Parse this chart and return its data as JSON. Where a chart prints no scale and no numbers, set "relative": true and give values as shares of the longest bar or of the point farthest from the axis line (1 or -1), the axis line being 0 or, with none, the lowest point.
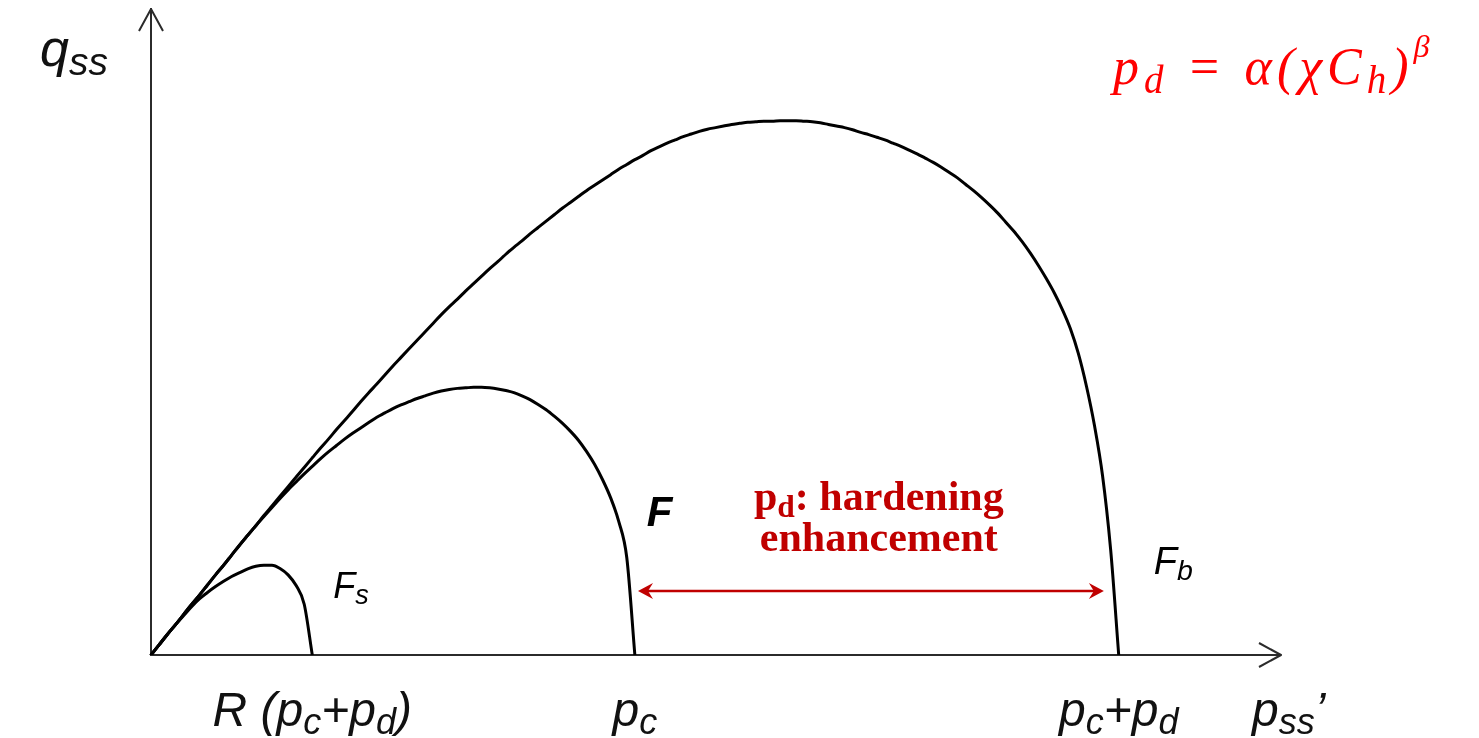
{
  "chart_data": {
    "type": "line",
    "relative": true,
    "xlabel": "p$_{ss}$’",
    "ylabel": "q$_{ss}$",
    "categories": [
      null,
      null,
      null,
      null,
      null,
      null,
      null,
      null,
      null,
      null,
      null,
      null,
      null,
      null,
      null,
      null,
      null,
      null,
      null,
      null,
      "R (p$_{c}$+p$_{d}$)",
      null,
      null,
      null,
      null,
      null,
      null,
      null,
      null,
      null,
      null,
      null,
      null,
      null,
      null,
      null,
      null,
      null,
      null,
      null,
      null,
      null,
      null,
      null,
      null,
      null,
      null,
      null,
      null,
      null,
      null,
      null,
      null,
      null,
      null,
      null,
      null,
      null,
      null,
      null,
      "p$_{c}$",
      null,
      null,
      null,
      null,
      null,
      null,
      null,
      null,
      null,
      null,
      null,
      null,
      null,
      null,
      null,
      null,
      null,
      null,
      null,
      null,
      null,
      null,
      null,
      null,
      null,
      null,
      null,
      null,
      null,
      null,
      null,
      null,
      null,
      null,
      null,
      null,
      null,
      null,
      null,
      null,
      null,
      null,
      null,
      null,
      null,
      null,
      null,
      null,
      null,
      null,
      null,
      null,
      null,
      null,
      null,
      null,
      null,
      null,
      null,
      "p$_{c}$+p$_{d}$",
      null,
      null,
      null,
      null,
      null,
      null,
      null,
      null,
      null,
      null,
      null,
      null,
      null,
      null,
      null,
      null,
      null,
      null,
      null,
      null
    ],
    "series": [
      {
        "name": "F$_{s}$",
        "color": "#000000",
        "values": [
          0,
          0.019,
          0.038,
          0.056,
          0.073,
          0.09,
          0.105,
          0.117,
          0.128,
          0.138,
          0.147,
          0.154,
          0.161,
          0.166,
          0.168,
          0.168,
          0.162,
          0.15,
          0.13,
          0.095,
          0,
          null,
          null,
          null,
          null,
          null,
          null,
          null,
          null,
          null,
          null,
          null,
          null,
          null,
          null,
          null,
          null,
          null,
          null,
          null,
          null,
          null,
          null,
          null,
          null,
          null,
          null,
          null,
          null,
          null,
          null,
          null,
          null,
          null,
          null,
          null,
          null,
          null,
          null,
          null,
          null,
          null,
          null,
          null,
          null,
          null,
          null,
          null,
          null,
          null,
          null,
          null,
          null,
          null,
          null,
          null,
          null,
          null,
          null,
          null,
          null,
          null,
          null,
          null,
          null,
          null,
          null,
          null,
          null,
          null,
          null,
          null,
          null,
          null,
          null,
          null,
          null,
          null,
          null,
          null,
          null,
          null,
          null,
          null,
          null,
          null,
          null,
          null,
          null,
          null,
          null,
          null,
          null,
          null,
          null,
          null,
          null,
          null,
          null,
          null,
          null,
          null,
          null,
          null,
          null,
          null,
          null,
          null,
          null,
          null,
          null,
          null,
          null,
          null,
          null,
          null,
          null,
          null,
          null,
          null,
          null
        ]
      },
      {
        "name": "F",
        "color": "#000000",
        "values": [
          0,
          0.019,
          0.038,
          0.056,
          0.075,
          0.094,
          0.112,
          0.131,
          0.15,
          0.168,
          0.187,
          0.206,
          0.224,
          0.242,
          0.259,
          0.276,
          0.293,
          0.309,
          0.324,
          0.339,
          0.353,
          0.367,
          0.38,
          0.392,
          0.404,
          0.415,
          0.425,
          0.435,
          0.445,
          0.453,
          0.461,
          0.468,
          0.474,
          0.48,
          0.485,
          0.49,
          0.494,
          0.497,
          0.499,
          0.5,
          0.501,
          0.501,
          0.5,
          0.498,
          0.495,
          0.491,
          0.485,
          0.478,
          0.469,
          0.459,
          0.447,
          0.434,
          0.419,
          0.402,
          0.381,
          0.357,
          0.328,
          0.294,
          0.25,
          0.182,
          0,
          null,
          null,
          null,
          null,
          null,
          null,
          null,
          null,
          null,
          null,
          null,
          null,
          null,
          null,
          null,
          null,
          null,
          null,
          null,
          null,
          null,
          null,
          null,
          null,
          null,
          null,
          null,
          null,
          null,
          null,
          null,
          null,
          null,
          null,
          null,
          null,
          null,
          null,
          null,
          null,
          null,
          null,
          null,
          null,
          null,
          null,
          null,
          null,
          null,
          null,
          null,
          null,
          null,
          null,
          null,
          null,
          null,
          null,
          null,
          null,
          null,
          null,
          null,
          null,
          null,
          null,
          null,
          null,
          null,
          null,
          null,
          null,
          null,
          null,
          null,
          null,
          null,
          null,
          null,
          null
        ]
      },
      {
        "name": "F$_{b}$",
        "color": "#000000",
        "values": [
          0,
          0.019,
          0.038,
          0.056,
          0.075,
          0.094,
          0.112,
          0.131,
          0.15,
          0.168,
          0.187,
          0.206,
          0.224,
          0.242,
          0.261,
          0.279,
          0.297,
          0.315,
          0.333,
          0.351,
          0.369,
          0.387,
          0.404,
          0.422,
          0.439,
          0.456,
          0.474,
          0.491,
          0.507,
          0.524,
          0.541,
          0.557,
          0.573,
          0.589,
          0.605,
          0.621,
          0.637,
          0.652,
          0.666,
          0.681,
          0.695,
          0.709,
          0.723,
          0.736,
          0.75,
          0.763,
          0.775,
          0.788,
          0.8,
          0.812,
          0.824,
          0.836,
          0.847,
          0.858,
          0.869,
          0.879,
          0.889,
          0.899,
          0.909,
          0.918,
          0.927,
          0.935,
          0.944,
          0.951,
          0.958,
          0.964,
          0.97,
          0.975,
          0.98,
          0.984,
          0.987,
          0.99,
          0.993,
          0.995,
          0.997,
          0.998,
          0.999,
          0.999,
          1,
          1,
          1,
          0.999,
          0.998,
          0.996,
          0.993,
          0.99,
          0.987,
          0.983,
          0.978,
          0.974,
          0.969,
          0.964,
          0.958,
          0.952,
          0.945,
          0.938,
          0.93,
          0.922,
          0.913,
          0.903,
          0.893,
          0.881,
          0.869,
          0.856,
          0.842,
          0.827,
          0.81,
          0.793,
          0.774,
          0.753,
          0.73,
          0.705,
          0.678,
          0.647,
          0.611,
          0.564,
          0.503,
          0.429,
          0.335,
          0.197,
          0,
          null,
          null,
          null,
          null,
          null,
          null,
          null,
          null,
          null,
          null,
          null,
          null,
          null,
          null,
          null,
          null,
          null,
          null,
          null,
          null
        ]
      }
    ],
    "annotations": [
      "p$_{d}$ = α(χC$_{h}$)$^{β}$",
      "p$_{d}$: hardening enhancement"
    ],
    "marker": "none",
    "line_style": "solid"
  }
}
